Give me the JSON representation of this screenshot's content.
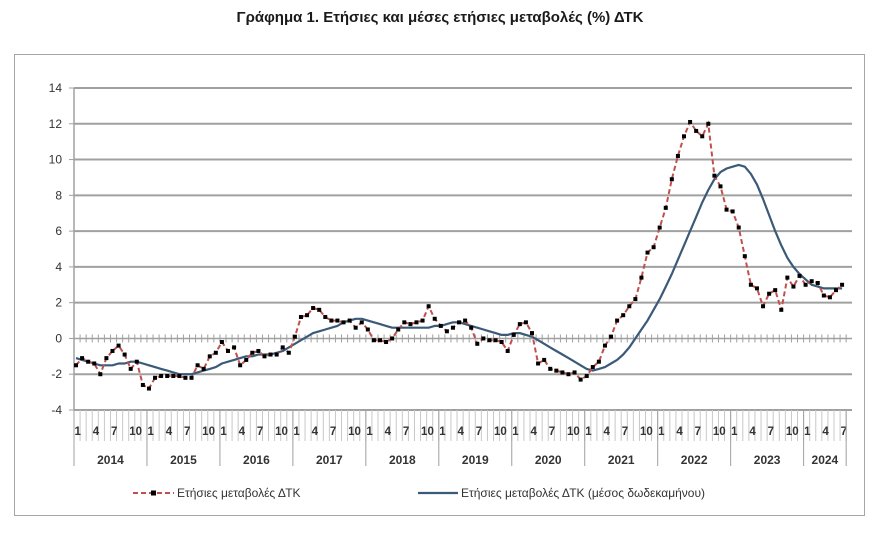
{
  "title": "Γράφημα 1. Ετήσιες και μέσες ετήσιες μεταβολές (%) ΔΤΚ",
  "legend": [
    {
      "label": "Ετήσιες μεταβολές ΔΤΚ",
      "style": "dashed-markers",
      "color": "#c0504d"
    },
    {
      "label": "Ετήσιες μεταβολές ΔΤΚ (μέσος δωδεκαμήνου)",
      "style": "solid",
      "color": "#3b5a78"
    }
  ],
  "chart_data": {
    "type": "line",
    "title": "Γράφημα 1. Ετήσιες και μέσες ετήσιες μεταβολές (%) ΔΤΚ",
    "xlabel": "",
    "ylabel": "",
    "ylim": [
      -4,
      14
    ],
    "yticks": [
      -4,
      -2,
      0,
      2,
      4,
      6,
      8,
      10,
      12,
      14
    ],
    "grid": true,
    "legend_position": "bottom",
    "x_month_ticks": [
      "1",
      "4",
      "7",
      "10"
    ],
    "years": [
      "2014",
      "2015",
      "2016",
      "2017",
      "2018",
      "2019",
      "2020",
      "2021",
      "2022",
      "2023",
      "2024"
    ],
    "x_start": "2014-01",
    "x_end": "2024-08",
    "series": [
      {
        "name": "Ετήσιες μεταβολές ΔΤΚ",
        "color": "#c0504d",
        "values": [
          -1.5,
          -1.1,
          -1.3,
          -1.4,
          -2.0,
          -1.1,
          -0.7,
          -0.4,
          -0.9,
          -1.7,
          -1.3,
          -2.6,
          -2.8,
          -2.2,
          -2.1,
          -2.1,
          -2.1,
          -2.1,
          -2.2,
          -2.2,
          -1.5,
          -1.7,
          -1.0,
          -0.8,
          -0.2,
          -0.7,
          -0.5,
          -1.5,
          -1.2,
          -0.8,
          -0.7,
          -1.0,
          -0.9,
          -0.9,
          -0.5,
          -0.8,
          0.1,
          1.2,
          1.3,
          1.7,
          1.6,
          1.2,
          1.0,
          1.0,
          0.9,
          1.0,
          0.6,
          0.9,
          0.5,
          -0.1,
          -0.1,
          -0.2,
          0.0,
          0.5,
          0.9,
          0.8,
          0.9,
          1.0,
          1.8,
          1.1,
          0.7,
          0.4,
          0.6,
          0.9,
          1.0,
          0.6,
          -0.3,
          0.0,
          -0.1,
          -0.1,
          -0.2,
          -0.7,
          0.2,
          0.8,
          0.9,
          0.3,
          -1.4,
          -1.2,
          -1.7,
          -1.8,
          -1.9,
          -2.0,
          -1.9,
          -2.3,
          -2.1,
          -1.6,
          -1.3,
          -0.4,
          0.1,
          1.0,
          1.3,
          1.8,
          2.2,
          3.4,
          4.8,
          5.1,
          6.2,
          7.3,
          8.9,
          10.2,
          11.3,
          12.1,
          11.6,
          11.3,
          12.0,
          9.1,
          8.5,
          7.2,
          7.1,
          6.2,
          4.6,
          3.0,
          2.8,
          1.8,
          2.5,
          2.7,
          1.6,
          3.4,
          2.9,
          3.5,
          3.0,
          3.2,
          3.1,
          2.4,
          2.3,
          2.7,
          3.0
        ]
      },
      {
        "name": "Ετήσιες μεταβολές ΔΤΚ (μέσος δωδεκαμήνου)",
        "color": "#3b5a78",
        "values": [
          -1.1,
          -1.2,
          -1.3,
          -1.4,
          -1.5,
          -1.5,
          -1.5,
          -1.4,
          -1.4,
          -1.3,
          -1.3,
          -1.4,
          -1.5,
          -1.6,
          -1.7,
          -1.8,
          -1.9,
          -2.0,
          -2.0,
          -2.0,
          -1.9,
          -1.8,
          -1.7,
          -1.6,
          -1.4,
          -1.3,
          -1.2,
          -1.1,
          -1.0,
          -1.0,
          -0.9,
          -0.9,
          -0.9,
          -0.8,
          -0.7,
          -0.5,
          -0.3,
          -0.1,
          0.1,
          0.3,
          0.4,
          0.5,
          0.6,
          0.7,
          0.9,
          1.0,
          1.1,
          1.1,
          1.0,
          0.9,
          0.8,
          0.7,
          0.6,
          0.6,
          0.6,
          0.6,
          0.6,
          0.6,
          0.6,
          0.7,
          0.7,
          0.8,
          0.9,
          0.9,
          0.8,
          0.7,
          0.6,
          0.5,
          0.4,
          0.3,
          0.2,
          0.2,
          0.3,
          0.3,
          0.2,
          0.1,
          -0.1,
          -0.3,
          -0.5,
          -0.7,
          -0.9,
          -1.1,
          -1.3,
          -1.5,
          -1.7,
          -1.8,
          -1.7,
          -1.6,
          -1.4,
          -1.2,
          -0.9,
          -0.5,
          0.0,
          0.5,
          1.0,
          1.6,
          2.2,
          2.9,
          3.6,
          4.4,
          5.2,
          6.0,
          6.8,
          7.6,
          8.3,
          8.9,
          9.3,
          9.5,
          9.6,
          9.7,
          9.6,
          9.2,
          8.6,
          7.8,
          6.9,
          6.0,
          5.2,
          4.5,
          4.0,
          3.6,
          3.3,
          3.0,
          2.9,
          2.8,
          2.8,
          2.8,
          2.8
        ]
      }
    ]
  }
}
